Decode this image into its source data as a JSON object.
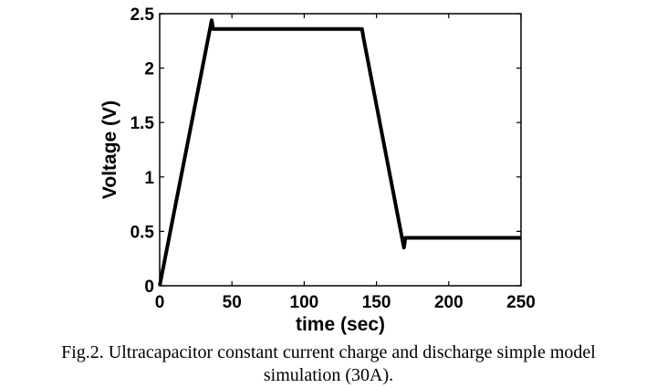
{
  "chart_data": {
    "type": "line",
    "x": [
      0,
      36,
      37,
      140,
      141,
      169,
      170,
      250
    ],
    "series": [
      {
        "color": "#000000",
        "values": [
          0,
          2.44,
          2.36,
          2.36,
          2.28,
          0.35,
          0.44,
          0.44
        ]
      }
    ],
    "xlim": [
      0,
      250
    ],
    "xticks": [
      0,
      50,
      100,
      150,
      200,
      250
    ],
    "ylim": [
      0,
      2.5
    ],
    "yticks": [
      0,
      0.5,
      1,
      1.5,
      2,
      2.5
    ],
    "xlabel": "time (sec)",
    "ylabel": "Voltage (V)",
    "caption": [
      "Fig.2. Ultracapacitor constant current charge and discharge simple model",
      "simulation (30A)."
    ]
  }
}
